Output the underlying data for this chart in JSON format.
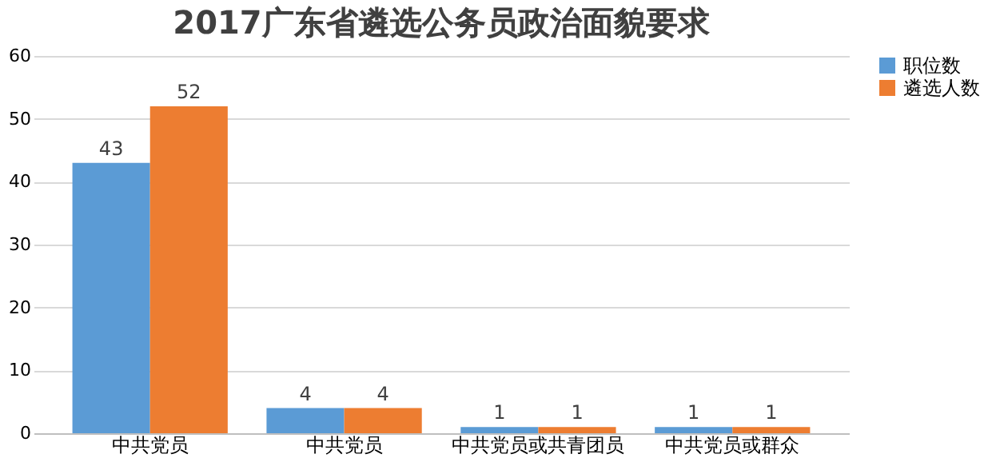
{
  "chart_data": {
    "type": "bar",
    "title": "2017广东省遴选公务员政治面貌要求",
    "categories": [
      "中共党员",
      "中共党员",
      "中共党员或共青团员",
      "中共党员或群众"
    ],
    "series": [
      {
        "name": "职位数",
        "color": "#5b9bd5",
        "values": [
          43,
          4,
          1,
          1
        ]
      },
      {
        "name": "遴选人数",
        "color": "#ed7d31",
        "values": [
          52,
          4,
          1,
          1
        ]
      }
    ],
    "ylim": [
      0,
      60
    ],
    "yticks": [
      0,
      10,
      20,
      30,
      40,
      50,
      60
    ],
    "grid": "y",
    "legend": "right",
    "data_labels": true
  }
}
